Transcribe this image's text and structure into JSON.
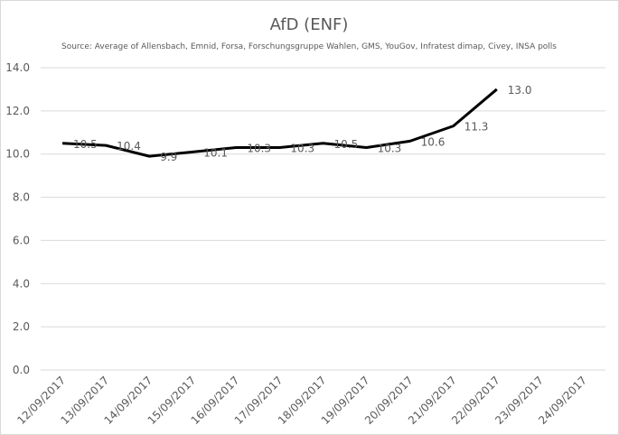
{
  "chart_data": {
    "type": "line",
    "title": "AfD (ENF)",
    "subtitle": "Source: Average of Allensbach, Emnid, Forsa, Forschungsgruppe  Wahlen, GMS, YouGov, Infratest dimap, Civey, INSA polls",
    "categories": [
      "12/09/2017",
      "13/09/2017",
      "14/09/2017",
      "15/09/2017",
      "16/09/2017",
      "17/09/2017",
      "18/09/2017",
      "19/09/2017",
      "20/09/2017",
      "21/09/2017",
      "22/09/2017",
      "23/09/2017",
      "24/09/2017"
    ],
    "series": [
      {
        "name": "AfD (ENF)",
        "color": "#000000",
        "values": [
          10.5,
          10.4,
          9.9,
          10.1,
          10.3,
          10.3,
          10.5,
          10.3,
          10.6,
          11.3,
          13.0,
          null,
          null
        ],
        "value_labels": [
          "10.5",
          "10.4",
          "9.9",
          "10.1",
          "10.3",
          "10.3",
          "10.5",
          "10.3",
          "10.6",
          "11.3",
          "13.0",
          null,
          null
        ]
      }
    ],
    "ylim": [
      0,
      14
    ],
    "yticks": [
      {
        "value": 0,
        "label": "0.0"
      },
      {
        "value": 2,
        "label": "2.0"
      },
      {
        "value": 4,
        "label": "4.0"
      },
      {
        "value": 6,
        "label": "6.0"
      },
      {
        "value": 8,
        "label": "8.0"
      },
      {
        "value": 10,
        "label": "10.0"
      },
      {
        "value": 12,
        "label": "12.0"
      },
      {
        "value": 14,
        "label": "14.0"
      }
    ],
    "grid": true
  }
}
